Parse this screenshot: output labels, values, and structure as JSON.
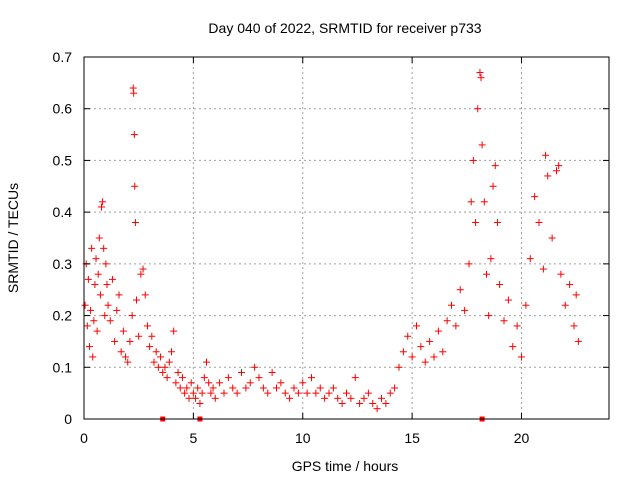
{
  "chart_data": {
    "type": "scatter",
    "title": "Day 040 of 2022, SRMTID for receiver p733",
    "xlabel": "GPS time / hours",
    "ylabel": "SRMTID / TECUs",
    "xlim": [
      0,
      24
    ],
    "ylim": [
      0,
      0.7
    ],
    "xticks": [
      0,
      5,
      10,
      15,
      20
    ],
    "xtick_labels": [
      "0",
      "5",
      "10",
      "15",
      "20"
    ],
    "yticks": [
      0,
      0.1,
      0.2,
      0.3,
      0.4,
      0.5,
      0.6,
      0.7
    ],
    "ytick_labels": [
      "0",
      "0.1",
      "0.2",
      "0.3",
      "0.4",
      "0.5",
      "0.6",
      "0.7"
    ],
    "grid": true,
    "marker": "+",
    "color": "#ff0000",
    "series": [
      {
        "name": "SRMTID",
        "points": [
          [
            0.05,
            0.22
          ],
          [
            0.1,
            0.3
          ],
          [
            0.15,
            0.18
          ],
          [
            0.2,
            0.27
          ],
          [
            0.25,
            0.14
          ],
          [
            0.3,
            0.21
          ],
          [
            0.35,
            0.33
          ],
          [
            0.4,
            0.12
          ],
          [
            0.45,
            0.19
          ],
          [
            0.5,
            0.26
          ],
          [
            0.55,
            0.31
          ],
          [
            0.6,
            0.17
          ],
          [
            0.65,
            0.28
          ],
          [
            0.7,
            0.35
          ],
          [
            0.75,
            0.24
          ],
          [
            0.8,
            0.41
          ],
          [
            0.85,
            0.42
          ],
          [
            0.9,
            0.33
          ],
          [
            0.95,
            0.2
          ],
          [
            1.0,
            0.3
          ],
          [
            1.05,
            0.26
          ],
          [
            1.1,
            0.22
          ],
          [
            1.2,
            0.19
          ],
          [
            1.3,
            0.27
          ],
          [
            1.4,
            0.15
          ],
          [
            1.5,
            0.21
          ],
          [
            1.6,
            0.24
          ],
          [
            1.7,
            0.13
          ],
          [
            1.8,
            0.17
          ],
          [
            1.9,
            0.12
          ],
          [
            2.0,
            0.11
          ],
          [
            2.1,
            0.15
          ],
          [
            2.2,
            0.2
          ],
          [
            2.25,
            0.64
          ],
          [
            2.27,
            0.63
          ],
          [
            2.3,
            0.55
          ],
          [
            2.32,
            0.45
          ],
          [
            2.35,
            0.38
          ],
          [
            2.4,
            0.23
          ],
          [
            2.5,
            0.16
          ],
          [
            2.6,
            0.28
          ],
          [
            2.7,
            0.29
          ],
          [
            2.8,
            0.24
          ],
          [
            2.9,
            0.18
          ],
          [
            3.0,
            0.14
          ],
          [
            3.1,
            0.16
          ],
          [
            3.2,
            0.11
          ],
          [
            3.3,
            0.13
          ],
          [
            3.4,
            0.1
          ],
          [
            3.5,
            0.12
          ],
          [
            3.6,
            0.09
          ],
          [
            3.7,
            0.1
          ],
          [
            3.8,
            0.08
          ],
          [
            3.9,
            0.11
          ],
          [
            4.0,
            0.13
          ],
          [
            4.1,
            0.17
          ],
          [
            4.2,
            0.07
          ],
          [
            4.3,
            0.09
          ],
          [
            4.4,
            0.06
          ],
          [
            4.5,
            0.08
          ],
          [
            4.6,
            0.05
          ],
          [
            4.7,
            0.06
          ],
          [
            4.8,
            0.04
          ],
          [
            4.9,
            0.07
          ],
          [
            5.0,
            0.05
          ],
          [
            5.1,
            0.04
          ],
          [
            5.2,
            0.06
          ],
          [
            5.3,
            0.03
          ],
          [
            5.4,
            0.05
          ],
          [
            5.5,
            0.08
          ],
          [
            5.6,
            0.11
          ],
          [
            5.7,
            0.07
          ],
          [
            5.8,
            0.05
          ],
          [
            5.9,
            0.06
          ],
          [
            6.0,
            0.04
          ],
          [
            6.2,
            0.07
          ],
          [
            6.4,
            0.05
          ],
          [
            6.6,
            0.08
          ],
          [
            6.8,
            0.06
          ],
          [
            7.0,
            0.05
          ],
          [
            7.2,
            0.09
          ],
          [
            7.4,
            0.06
          ],
          [
            7.6,
            0.07
          ],
          [
            7.8,
            0.1
          ],
          [
            8.0,
            0.08
          ],
          [
            8.2,
            0.06
          ],
          [
            8.4,
            0.05
          ],
          [
            8.6,
            0.09
          ],
          [
            8.8,
            0.06
          ],
          [
            9.0,
            0.07
          ],
          [
            9.2,
            0.05
          ],
          [
            9.4,
            0.04
          ],
          [
            9.6,
            0.06
          ],
          [
            9.8,
            0.05
          ],
          [
            10.0,
            0.07
          ],
          [
            10.2,
            0.05
          ],
          [
            10.4,
            0.08
          ],
          [
            10.6,
            0.05
          ],
          [
            10.8,
            0.06
          ],
          [
            11.0,
            0.04
          ],
          [
            11.2,
            0.05
          ],
          [
            11.4,
            0.06
          ],
          [
            11.6,
            0.04
          ],
          [
            11.8,
            0.03
          ],
          [
            12.0,
            0.05
          ],
          [
            12.2,
            0.04
          ],
          [
            12.4,
            0.08
          ],
          [
            12.6,
            0.03
          ],
          [
            12.8,
            0.04
          ],
          [
            13.0,
            0.05
          ],
          [
            13.2,
            0.03
          ],
          [
            13.4,
            0.02
          ],
          [
            13.6,
            0.04
          ],
          [
            13.8,
            0.03
          ],
          [
            14.0,
            0.05
          ],
          [
            14.2,
            0.06
          ],
          [
            14.4,
            0.1
          ],
          [
            14.6,
            0.13
          ],
          [
            14.8,
            0.16
          ],
          [
            15.0,
            0.12
          ],
          [
            15.2,
            0.18
          ],
          [
            15.4,
            0.14
          ],
          [
            15.6,
            0.11
          ],
          [
            15.8,
            0.15
          ],
          [
            16.0,
            0.12
          ],
          [
            16.2,
            0.17
          ],
          [
            16.4,
            0.13
          ],
          [
            16.6,
            0.19
          ],
          [
            16.8,
            0.22
          ],
          [
            17.0,
            0.18
          ],
          [
            17.2,
            0.25
          ],
          [
            17.4,
            0.21
          ],
          [
            17.6,
            0.3
          ],
          [
            17.7,
            0.42
          ],
          [
            17.8,
            0.5
          ],
          [
            17.9,
            0.38
          ],
          [
            18.0,
            0.6
          ],
          [
            18.1,
            0.67
          ],
          [
            18.15,
            0.66
          ],
          [
            18.2,
            0.53
          ],
          [
            18.3,
            0.42
          ],
          [
            18.4,
            0.28
          ],
          [
            18.5,
            0.2
          ],
          [
            18.6,
            0.31
          ],
          [
            18.7,
            0.45
          ],
          [
            18.8,
            0.49
          ],
          [
            18.9,
            0.38
          ],
          [
            19.0,
            0.26
          ],
          [
            19.2,
            0.19
          ],
          [
            19.4,
            0.23
          ],
          [
            19.6,
            0.14
          ],
          [
            19.8,
            0.18
          ],
          [
            20.0,
            0.12
          ],
          [
            20.2,
            0.22
          ],
          [
            20.4,
            0.31
          ],
          [
            20.6,
            0.43
          ],
          [
            20.8,
            0.38
          ],
          [
            21.0,
            0.29
          ],
          [
            21.1,
            0.51
          ],
          [
            21.2,
            0.47
          ],
          [
            21.4,
            0.35
          ],
          [
            21.6,
            0.48
          ],
          [
            21.7,
            0.49
          ],
          [
            21.8,
            0.28
          ],
          [
            22.0,
            0.22
          ],
          [
            22.2,
            0.26
          ],
          [
            22.4,
            0.18
          ],
          [
            22.5,
            0.24
          ],
          [
            22.6,
            0.15
          ]
        ]
      }
    ],
    "zero_markers_x": [
      3.6,
      5.3,
      18.2
    ]
  }
}
